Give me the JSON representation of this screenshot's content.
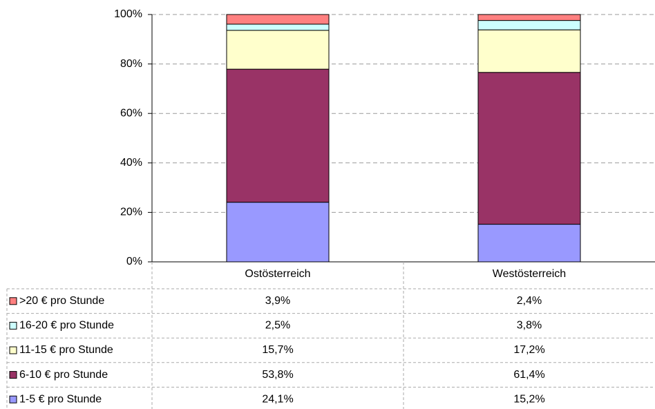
{
  "chart_data": {
    "type": "stacked_bar",
    "categories": [
      "Ostösterreich",
      "Westösterreich"
    ],
    "series": [
      {
        "name": "1-5 € pro Stunde",
        "color": "#9999ff",
        "values": [
          24.1,
          15.2
        ],
        "value_labels": [
          "24,1%",
          "15,2%"
        ]
      },
      {
        "name": "6-10 € pro Stunde",
        "color": "#993366",
        "values": [
          53.8,
          61.4
        ],
        "value_labels": [
          "53,8%",
          "61,4%"
        ]
      },
      {
        "name": "11-15 € pro Stunde",
        "color": "#ffffcc",
        "values": [
          15.7,
          17.2
        ],
        "value_labels": [
          "15,7%",
          "17,2%"
        ]
      },
      {
        "name": "16-20 € pro Stunde",
        "color": "#ccffff",
        "values": [
          2.5,
          3.8
        ],
        "value_labels": [
          "2,5%",
          "3,8%"
        ]
      },
      {
        "name": ">20 € pro Stunde",
        "color": "#ff8080",
        "values": [
          3.9,
          2.4
        ],
        "value_labels": [
          "3,9%",
          "2,4%"
        ]
      }
    ],
    "ylim": [
      0,
      100
    ],
    "yticks": [
      {
        "value": 0,
        "label": "0%"
      },
      {
        "value": 20,
        "label": "20%"
      },
      {
        "value": 40,
        "label": "40%"
      },
      {
        "value": 60,
        "label": "60%"
      },
      {
        "value": 80,
        "label": "80%"
      },
      {
        "value": 100,
        "label": "100%"
      }
    ],
    "grid": true
  }
}
